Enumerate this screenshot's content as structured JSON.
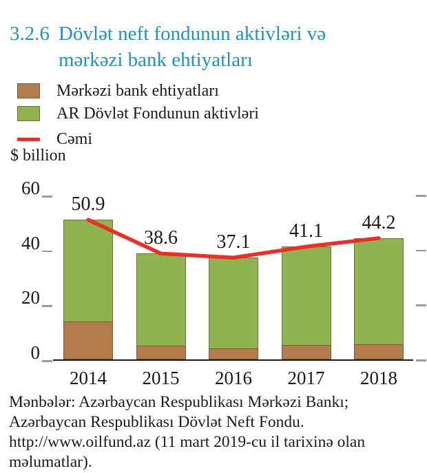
{
  "header": {
    "number": "3.2.6",
    "title_line1": "Dövlət neft fondunun aktivləri və",
    "title_line2": "mərkəzi bank ehtiyatları"
  },
  "legend": {
    "items": [
      {
        "label": "Mərkəzi bank ehtiyatları",
        "swatch": "reserves"
      },
      {
        "label": "AR Dövlət Fondunun aktivləri",
        "swatch": "fund"
      },
      {
        "label": "Cəmi",
        "swatch": "total-line"
      }
    ]
  },
  "unit_label": "$ billion",
  "chart_data": {
    "type": "bar",
    "subtype": "stacked-bar-with-total-line",
    "categories": [
      "2014",
      "2015",
      "2016",
      "2017",
      "2018"
    ],
    "series": [
      {
        "name": "Mərkəzi bank ehtiyatları",
        "color": "#b57c4b",
        "values": [
          13.8,
          5.0,
          4.0,
          5.3,
          5.6
        ]
      },
      {
        "name": "AR Dövlət Fondunun aktivləri",
        "color": "#8fb350",
        "values": [
          37.1,
          33.6,
          33.1,
          35.8,
          38.6
        ]
      }
    ],
    "line_series": {
      "name": "Cəmi",
      "color": "#ee2e24",
      "values": [
        50.9,
        38.6,
        37.1,
        41.1,
        44.2
      ]
    },
    "labels": [
      "50.9",
      "38.6",
      "37.1",
      "41.1",
      "44.2"
    ],
    "title": "Dövlət neft fondunun aktivləri və mərkəzi bank ehtiyatları",
    "xlabel": "",
    "ylabel": "$ billion",
    "yticks": [
      60,
      40,
      20,
      0
    ],
    "ylim": [
      0,
      60
    ],
    "grid": false,
    "legend_position": "top-left"
  },
  "footer": {
    "source": "Mənbələr: Azərbaycan Respublikası Mərkəzi Bankı;\nAzərbaycan Respublikası Dövlət Neft Fondu.\nhttp://www.oilfund.az (11 mart 2019-cu il tarixinə olan\nməlumatlar)."
  },
  "colors": {
    "title": "#1b93c5",
    "reserves": "#b57c4b",
    "reserves_border": "#7d5a33",
    "fund": "#8fb350",
    "fund_border": "#70713f",
    "total_line": "#ee2e24",
    "tick": "#9b9b9b",
    "axis": "#1a1a1a",
    "text": "#1a1a1a"
  }
}
